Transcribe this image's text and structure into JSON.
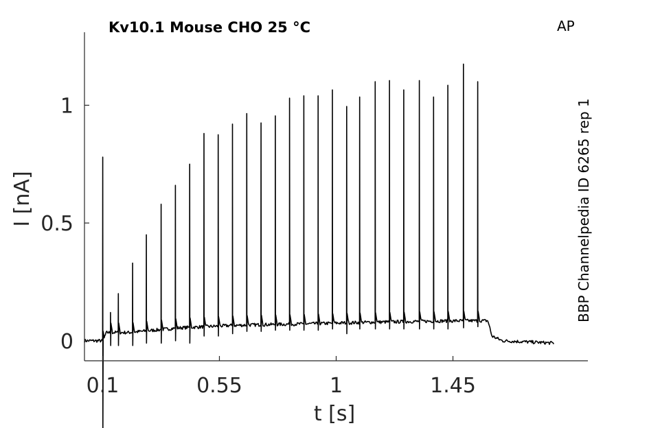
{
  "chart_data": {
    "type": "line",
    "title": "Kv10.1  Mouse  CHO  25 °C",
    "corner_label": "AP",
    "side_label": "BBP Channelpedia ID 6265 rep 1",
    "xlabel": "t [s]",
    "ylabel": "I [nA]",
    "xlim": [
      0.03,
      1.97
    ],
    "ylim": [
      -0.085,
      1.31
    ],
    "x_ticks": [
      0.1,
      0.55,
      1,
      1.45
    ],
    "x_tick_labels": [
      "0.1",
      "0.55",
      "1",
      "1.45"
    ],
    "y_ticks": [
      0,
      0.5,
      1
    ],
    "y_tick_labels": [
      "0",
      "0.5",
      "1"
    ],
    "grid": false,
    "color": "#000000",
    "series": [
      {
        "baseline": [
          [
            0.03,
            0.0
          ],
          [
            0.1,
            0.0
          ],
          [
            0.115,
            0.035
          ],
          [
            0.2,
            0.035
          ],
          [
            0.3,
            0.045
          ],
          [
            0.4,
            0.055
          ],
          [
            0.5,
            0.06
          ],
          [
            0.6,
            0.065
          ],
          [
            0.7,
            0.068
          ],
          [
            0.8,
            0.07
          ],
          [
            0.9,
            0.072
          ],
          [
            1.0,
            0.075
          ],
          [
            1.1,
            0.078
          ],
          [
            1.2,
            0.08
          ],
          [
            1.3,
            0.082
          ],
          [
            1.4,
            0.084
          ],
          [
            1.5,
            0.085
          ],
          [
            1.585,
            0.085
          ],
          [
            1.6,
            0.02
          ],
          [
            1.64,
            0.0
          ],
          [
            1.84,
            -0.01
          ]
        ],
        "spikes": [
          {
            "t": 0.1,
            "peak": 0.78,
            "trough": -0.38
          },
          {
            "t": 0.13,
            "peak": 0.12,
            "trough": -0.02
          },
          {
            "t": 0.16,
            "peak": 0.2,
            "trough": -0.02
          },
          {
            "t": 0.215,
            "peak": 0.33,
            "trough": -0.02
          },
          {
            "t": 0.268,
            "peak": 0.45,
            "trough": -0.01
          },
          {
            "t": 0.325,
            "peak": 0.58,
            "trough": -0.01
          },
          {
            "t": 0.38,
            "peak": 0.66,
            "trough": 0.0
          },
          {
            "t": 0.435,
            "peak": 0.75,
            "trough": -0.01
          },
          {
            "t": 0.49,
            "peak": 0.88,
            "trough": 0.02
          },
          {
            "t": 0.545,
            "peak": 0.875,
            "trough": 0.02
          },
          {
            "t": 0.6,
            "peak": 0.92,
            "trough": 0.03
          },
          {
            "t": 0.655,
            "peak": 0.965,
            "trough": 0.04
          },
          {
            "t": 0.71,
            "peak": 0.925,
            "trough": 0.04
          },
          {
            "t": 0.765,
            "peak": 0.955,
            "trough": 0.045
          },
          {
            "t": 0.82,
            "peak": 1.03,
            "trough": 0.045
          },
          {
            "t": 0.875,
            "peak": 1.04,
            "trough": 0.045
          },
          {
            "t": 0.93,
            "peak": 1.04,
            "trough": 0.045
          },
          {
            "t": 0.985,
            "peak": 1.065,
            "trough": 0.05
          },
          {
            "t": 1.04,
            "peak": 0.995,
            "trough": 0.03
          },
          {
            "t": 1.09,
            "peak": 1.035,
            "trough": 0.05
          },
          {
            "t": 1.15,
            "peak": 1.1,
            "trough": 0.05
          },
          {
            "t": 1.205,
            "peak": 1.105,
            "trough": 0.05
          },
          {
            "t": 1.26,
            "peak": 1.065,
            "trough": 0.05
          },
          {
            "t": 1.32,
            "peak": 1.105,
            "trough": 0.05
          },
          {
            "t": 1.375,
            "peak": 1.035,
            "trough": 0.05
          },
          {
            "t": 1.43,
            "peak": 1.085,
            "trough": 0.05
          },
          {
            "t": 1.49,
            "peak": 1.175,
            "trough": 0.055
          },
          {
            "t": 1.545,
            "peak": 1.1,
            "trough": 0.06
          }
        ]
      }
    ]
  }
}
